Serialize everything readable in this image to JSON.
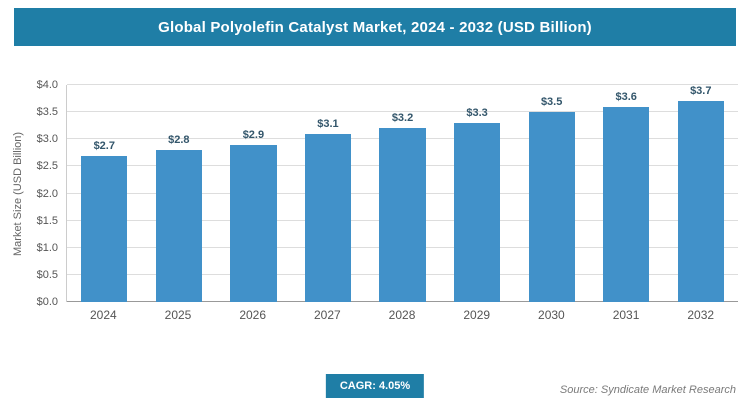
{
  "header": {
    "title": "Global Polyolefin Catalyst Market, 2024 - 2032 (USD Billion)"
  },
  "chart_data": {
    "type": "bar",
    "title": "Global Polyolefin Catalyst Market, 2024 - 2032 (USD Billion)",
    "categories": [
      "2024",
      "2025",
      "2026",
      "2027",
      "2028",
      "2029",
      "2030",
      "2031",
      "2032"
    ],
    "values": [
      2.7,
      2.8,
      2.9,
      3.1,
      3.2,
      3.3,
      3.5,
      3.6,
      3.7
    ],
    "value_labels": [
      "$2.7",
      "$2.8",
      "$2.9",
      "$3.1",
      "$3.2",
      "$3.3",
      "$3.5",
      "$3.6",
      "$3.7"
    ],
    "xlabel": "",
    "ylabel": "Market Size (USD Billion)",
    "ylim": [
      0,
      4
    ],
    "yticks": [
      0,
      0.5,
      1,
      1.5,
      2,
      2.5,
      3,
      3.5,
      4
    ],
    "ytick_labels": [
      "$0.0",
      "$0.5",
      "$1.0",
      "$1.5",
      "$2.0",
      "$2.5",
      "$3.0",
      "$3.5",
      "$4.0"
    ],
    "grid": true,
    "legend": "none"
  },
  "footer": {
    "cagr": "CAGR: 4.05%",
    "source": "Source: Syndicate Market Research"
  },
  "colors": {
    "header_bg": "#1f7ea6",
    "bar": "#4191c9",
    "value_label": "#33566b",
    "badge_bg": "#1f7ea6"
  }
}
